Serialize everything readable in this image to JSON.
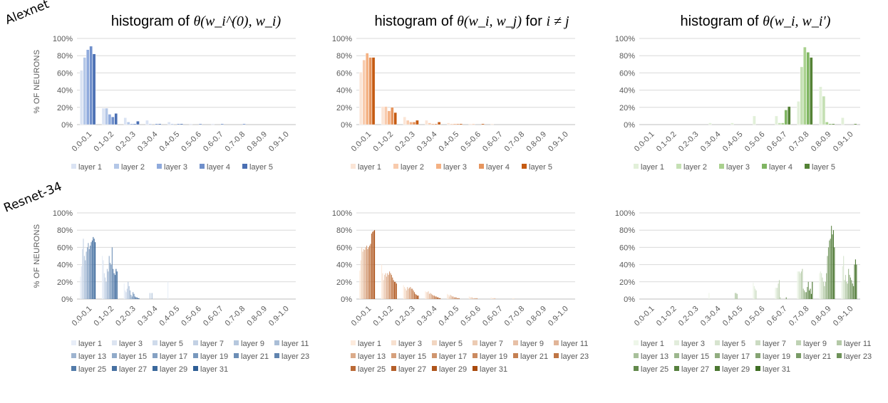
{
  "row_labels": [
    "Alexnet",
    "Resnet-34"
  ],
  "col_titles": [
    {
      "prefix": "histogram of ",
      "math": "θ(w_i^(0), w_i)"
    },
    {
      "prefix": "histogram of ",
      "math": "θ(w_i, w_j)",
      "suffix_text": " for ",
      "suffix_math": "i ≠ j"
    },
    {
      "prefix": "histogram of ",
      "math": "θ(w_i, w_i′)"
    }
  ],
  "colors": {
    "blue": [
      "#DAE3F3",
      "#B4C7E7",
      "#8FAADC",
      "#6F8FCB",
      "#4A6FB3"
    ],
    "orange": [
      "#FBE5D6",
      "#F8CBAD",
      "#F4B183",
      "#E6955E",
      "#C55A11"
    ],
    "green": [
      "#E2F0D9",
      "#C5E0B4",
      "#A9D18E",
      "#7FB562",
      "#548235"
    ],
    "resnet_blue_start": "#E8EEF8",
    "resnet_blue_end": "#2E5E95",
    "resnet_orange_start": "#FDEBDD",
    "resnet_orange_end": "#A94A0D",
    "resnet_green_start": "#EEF6E9",
    "resnet_green_end": "#3F6E24",
    "grid": "#D9D9D9",
    "axis": "#BFBFBF"
  },
  "chart_data": [
    {
      "type": "bar",
      "network": "Alexnet",
      "title": "histogram of θ(w_i^(0), w_i)",
      "categories": [
        "0.0-0.1",
        "0.1-0.2",
        "0.2-0.3",
        "0.3-0.4",
        "0.4-0.5",
        "0.5-0.6",
        "0.6-0.7",
        "0.7-0.8",
        "0.8-0.9",
        "0.9-1.0"
      ],
      "ylabel": "% OF NEURONS",
      "ylim": [
        0,
        100
      ],
      "yticks": [
        "0%",
        "20%",
        "40%",
        "60%",
        "80%",
        "100%"
      ],
      "series": [
        {
          "name": "layer 1",
          "values": [
            63,
            19,
            8,
            5,
            3,
            1,
            1,
            0,
            0,
            0
          ]
        },
        {
          "name": "layer 2",
          "values": [
            78,
            19,
            3,
            1,
            1,
            0,
            0,
            0,
            0,
            0
          ]
        },
        {
          "name": "layer 3",
          "values": [
            87,
            12,
            1,
            0,
            0,
            0,
            0,
            0,
            0,
            0
          ]
        },
        {
          "name": "layer 4",
          "values": [
            91,
            9,
            1,
            1,
            1,
            1,
            1,
            1,
            0,
            0
          ]
        },
        {
          "name": "layer 5",
          "values": [
            82,
            13,
            4,
            1,
            1,
            0,
            0,
            0,
            0,
            0
          ]
        }
      ]
    },
    {
      "type": "bar",
      "network": "Alexnet",
      "title": "histogram of θ(w_i, w_j) for i ≠ j",
      "categories": [
        "0.0-0.1",
        "0.1-0.2",
        "0.2-0.3",
        "0.3-0.4",
        "0.4-0.5",
        "0.5-0.6",
        "0.6-0.7",
        "0.7-0.8",
        "0.8-0.9",
        "0.9-1.0"
      ],
      "ylabel": "",
      "ylim": [
        0,
        100
      ],
      "yticks": [
        "0%",
        "20%",
        "40%",
        "60%",
        "80%",
        "100%"
      ],
      "series": [
        {
          "name": "layer 1",
          "values": [
            61,
            21,
            9,
            5,
            2,
            1,
            1,
            0,
            0,
            0
          ]
        },
        {
          "name": "layer 2",
          "values": [
            75,
            21,
            5,
            2,
            1,
            1,
            0,
            0,
            0,
            0
          ]
        },
        {
          "name": "layer 3",
          "values": [
            83,
            16,
            3,
            1,
            1,
            0,
            0,
            0,
            0,
            0
          ]
        },
        {
          "name": "layer 4",
          "values": [
            78,
            20,
            3,
            1,
            1,
            0,
            0,
            0,
            0,
            0
          ]
        },
        {
          "name": "layer 5",
          "values": [
            78,
            14,
            5,
            3,
            1,
            1,
            0,
            0,
            0,
            0
          ]
        }
      ]
    },
    {
      "type": "bar",
      "network": "Alexnet",
      "title": "histogram of θ(w_i, w_i′)",
      "categories": [
        "0.0-0.1",
        "0.1-0.2",
        "0.2-0.3",
        "0.3-0.4",
        "0.4-0.5",
        "0.5-0.6",
        "0.6-0.7",
        "0.7-0.8",
        "0.8-0.9",
        "0.9-1.0"
      ],
      "ylabel": "",
      "ylim": [
        0,
        100
      ],
      "yticks": [
        "0%",
        "20%",
        "40%",
        "60%",
        "80%",
        "100%"
      ],
      "series": [
        {
          "name": "layer 1",
          "values": [
            0,
            0,
            0,
            2,
            2,
            10,
            10,
            27,
            44,
            8
          ]
        },
        {
          "name": "layer 2",
          "values": [
            0,
            0,
            0,
            0,
            0,
            0,
            2,
            67,
            33,
            0
          ]
        },
        {
          "name": "layer 3",
          "values": [
            0,
            0,
            0,
            0,
            0,
            0,
            2,
            90,
            3,
            0
          ]
        },
        {
          "name": "layer 4",
          "values": [
            0,
            0,
            0,
            0,
            0,
            0,
            17,
            84,
            1,
            0
          ]
        },
        {
          "name": "layer 5",
          "values": [
            0,
            0,
            0,
            0,
            0,
            0,
            21,
            78,
            1,
            1
          ]
        }
      ]
    },
    {
      "type": "bar",
      "network": "Resnet-34",
      "categories": [
        "0.0-0.1",
        "0.1-0.2",
        "0.2-0.3",
        "0.3-0.4",
        "0.4-0.5",
        "0.5-0.6",
        "0.6-0.7",
        "0.7-0.8",
        "0.8-0.9",
        "0.9-1.0"
      ],
      "ylabel": "% OF NEURONS",
      "ylim": [
        0,
        100
      ],
      "yticks": [
        "0%",
        "20%",
        "40%",
        "60%",
        "80%",
        "100%"
      ],
      "legend": [
        "layer 1",
        "layer 3",
        "layer 5",
        "layer 7",
        "layer 9",
        "layer 11",
        "layer 13",
        "layer 15",
        "layer 17",
        "layer 19",
        "layer 21",
        "layer 23",
        "layer 25",
        "layer 27",
        "layer 29",
        "layer 31"
      ],
      "series_values": [
        [
          26,
          38,
          58,
          70,
          50,
          45,
          55,
          60,
          65,
          58,
          62,
          66,
          68,
          72,
          70,
          66
        ],
        [
          50,
          45,
          30,
          25,
          20,
          35,
          32,
          50,
          42,
          40,
          60,
          35,
          30,
          28,
          35,
          32
        ],
        [
          18,
          10,
          8,
          12,
          20,
          15,
          10,
          5,
          3,
          8,
          6,
          3,
          2,
          2,
          1,
          1
        ],
        [
          0,
          0,
          0,
          0,
          7,
          0,
          7,
          0,
          0,
          0,
          0,
          0,
          0,
          0,
          0,
          0
        ],
        [
          20,
          0,
          0,
          0,
          0,
          0,
          0,
          0,
          0,
          0,
          0,
          0,
          0,
          0,
          0,
          0
        ],
        [
          0,
          0,
          0,
          0,
          0,
          0,
          0,
          0,
          0,
          0,
          0,
          0,
          0,
          0,
          0,
          0
        ],
        [
          0,
          0,
          0,
          0,
          0,
          0,
          0,
          0,
          0,
          0,
          0,
          0,
          0,
          0,
          0,
          0
        ],
        [
          0,
          0,
          0,
          0,
          0,
          0,
          0,
          0,
          0,
          0,
          0,
          0,
          0,
          0,
          0,
          0
        ],
        [
          0,
          0,
          0,
          0,
          0,
          0,
          0,
          0,
          0,
          0,
          0,
          0,
          0,
          0,
          0,
          0
        ],
        [
          0,
          0,
          0,
          0,
          0,
          0,
          0,
          0,
          0,
          0,
          0,
          0,
          0,
          0,
          0,
          0
        ]
      ]
    },
    {
      "type": "bar",
      "network": "Resnet-34",
      "categories": [
        "0.0-0.1",
        "0.1-0.2",
        "0.2-0.3",
        "0.3-0.4",
        "0.4-0.5",
        "0.5-0.6",
        "0.6-0.7",
        "0.7-0.8",
        "0.8-0.9",
        "0.9-1.0"
      ],
      "ylabel": "",
      "ylim": [
        0,
        100
      ],
      "yticks": [
        "0%",
        "20%",
        "40%",
        "60%",
        "80%",
        "100%"
      ],
      "legend": [
        "layer 1",
        "layer 3",
        "layer 5",
        "layer 7",
        "layer 9",
        "layer 11",
        "layer 13",
        "layer 15",
        "layer 17",
        "layer 19",
        "layer 21",
        "layer 23",
        "layer 25",
        "layer 27",
        "layer 29",
        "layer 31"
      ],
      "series_values": [
        [
          33,
          45,
          60,
          55,
          58,
          57,
          60,
          62,
          58,
          60,
          62,
          64,
          76,
          78,
          79,
          80
        ],
        [
          40,
          30,
          22,
          28,
          30,
          26,
          30,
          28,
          32,
          30,
          28,
          25,
          22,
          20,
          20,
          18
        ],
        [
          16,
          14,
          12,
          10,
          14,
          12,
          13,
          14,
          12,
          12,
          10,
          8,
          6,
          5,
          4,
          4
        ],
        [
          9,
          8,
          8,
          9,
          6,
          7,
          6,
          5,
          4,
          4,
          3,
          3,
          2,
          2,
          1,
          1
        ],
        [
          6,
          5,
          3,
          5,
          4,
          3,
          3,
          2,
          2,
          2,
          1,
          1,
          1,
          0,
          0,
          0
        ],
        [
          3,
          2,
          2,
          2,
          1,
          1,
          1,
          1,
          1,
          0,
          0,
          0,
          0,
          0,
          0,
          0
        ],
        [
          2,
          1,
          1,
          1,
          1,
          0,
          0,
          0,
          0,
          0,
          0,
          0,
          0,
          0,
          0,
          0
        ],
        [
          1,
          1,
          0,
          0,
          0,
          0,
          0,
          0,
          0,
          0,
          0,
          0,
          0,
          0,
          0,
          0
        ],
        [
          0,
          0,
          0,
          0,
          0,
          0,
          0,
          0,
          0,
          0,
          0,
          0,
          0,
          0,
          0,
          0
        ],
        [
          0,
          0,
          0,
          0,
          0,
          0,
          0,
          0,
          0,
          0,
          0,
          0,
          0,
          0,
          0,
          0
        ]
      ]
    },
    {
      "type": "bar",
      "network": "Resnet-34",
      "categories": [
        "0.0-0.1",
        "0.1-0.2",
        "0.2-0.3",
        "0.3-0.4",
        "0.4-0.5",
        "0.5-0.6",
        "0.6-0.7",
        "0.7-0.8",
        "0.8-0.9",
        "0.9-1.0"
      ],
      "ylabel": "",
      "ylim": [
        0,
        100
      ],
      "yticks": [
        "0%",
        "20%",
        "40%",
        "60%",
        "80%",
        "100%"
      ],
      "legend": [
        "layer 1",
        "layer 3",
        "layer 5",
        "layer 7",
        "layer 9",
        "layer 11",
        "layer 13",
        "layer 15",
        "layer 17",
        "layer 19",
        "layer 21",
        "layer 23",
        "layer 25",
        "layer 27",
        "layer 29",
        "layer 31"
      ],
      "series_values": [
        [
          0,
          0,
          0,
          0,
          0,
          0,
          0,
          0,
          0,
          0,
          0,
          0,
          0,
          0,
          0,
          0
        ],
        [
          0,
          0,
          0,
          0,
          0,
          0,
          0,
          0,
          0,
          0,
          0,
          0,
          0,
          0,
          0,
          0
        ],
        [
          0,
          0,
          0,
          0,
          0,
          0,
          0,
          0,
          0,
          0,
          0,
          0,
          0,
          0,
          0,
          0
        ],
        [
          7,
          0,
          0,
          0,
          0,
          0,
          0,
          0,
          0,
          0,
          0,
          0,
          0,
          0,
          0,
          0
        ],
        [
          0,
          0,
          0,
          0,
          7,
          7,
          6,
          0,
          0,
          0,
          0,
          0,
          0,
          0,
          0,
          0
        ],
        [
          19,
          15,
          12,
          10,
          0,
          0,
          0,
          0,
          0,
          0,
          0,
          0,
          0,
          0,
          0,
          0
        ],
        [
          13,
          13,
          13,
          18,
          22,
          2,
          0,
          0,
          0,
          0,
          0,
          2,
          0,
          0,
          0,
          0
        ],
        [
          32,
          32,
          32,
          30,
          32,
          35,
          12,
          10,
          8,
          8,
          14,
          20,
          10,
          12,
          6,
          20
        ],
        [
          30,
          32,
          30,
          25,
          20,
          15,
          20,
          30,
          50,
          60,
          68,
          70,
          85,
          75,
          80,
          60
        ],
        [
          20,
          38,
          50,
          22,
          28,
          20,
          18,
          35,
          28,
          25,
          22,
          18,
          15,
          40,
          46,
          40
        ]
      ]
    }
  ]
}
